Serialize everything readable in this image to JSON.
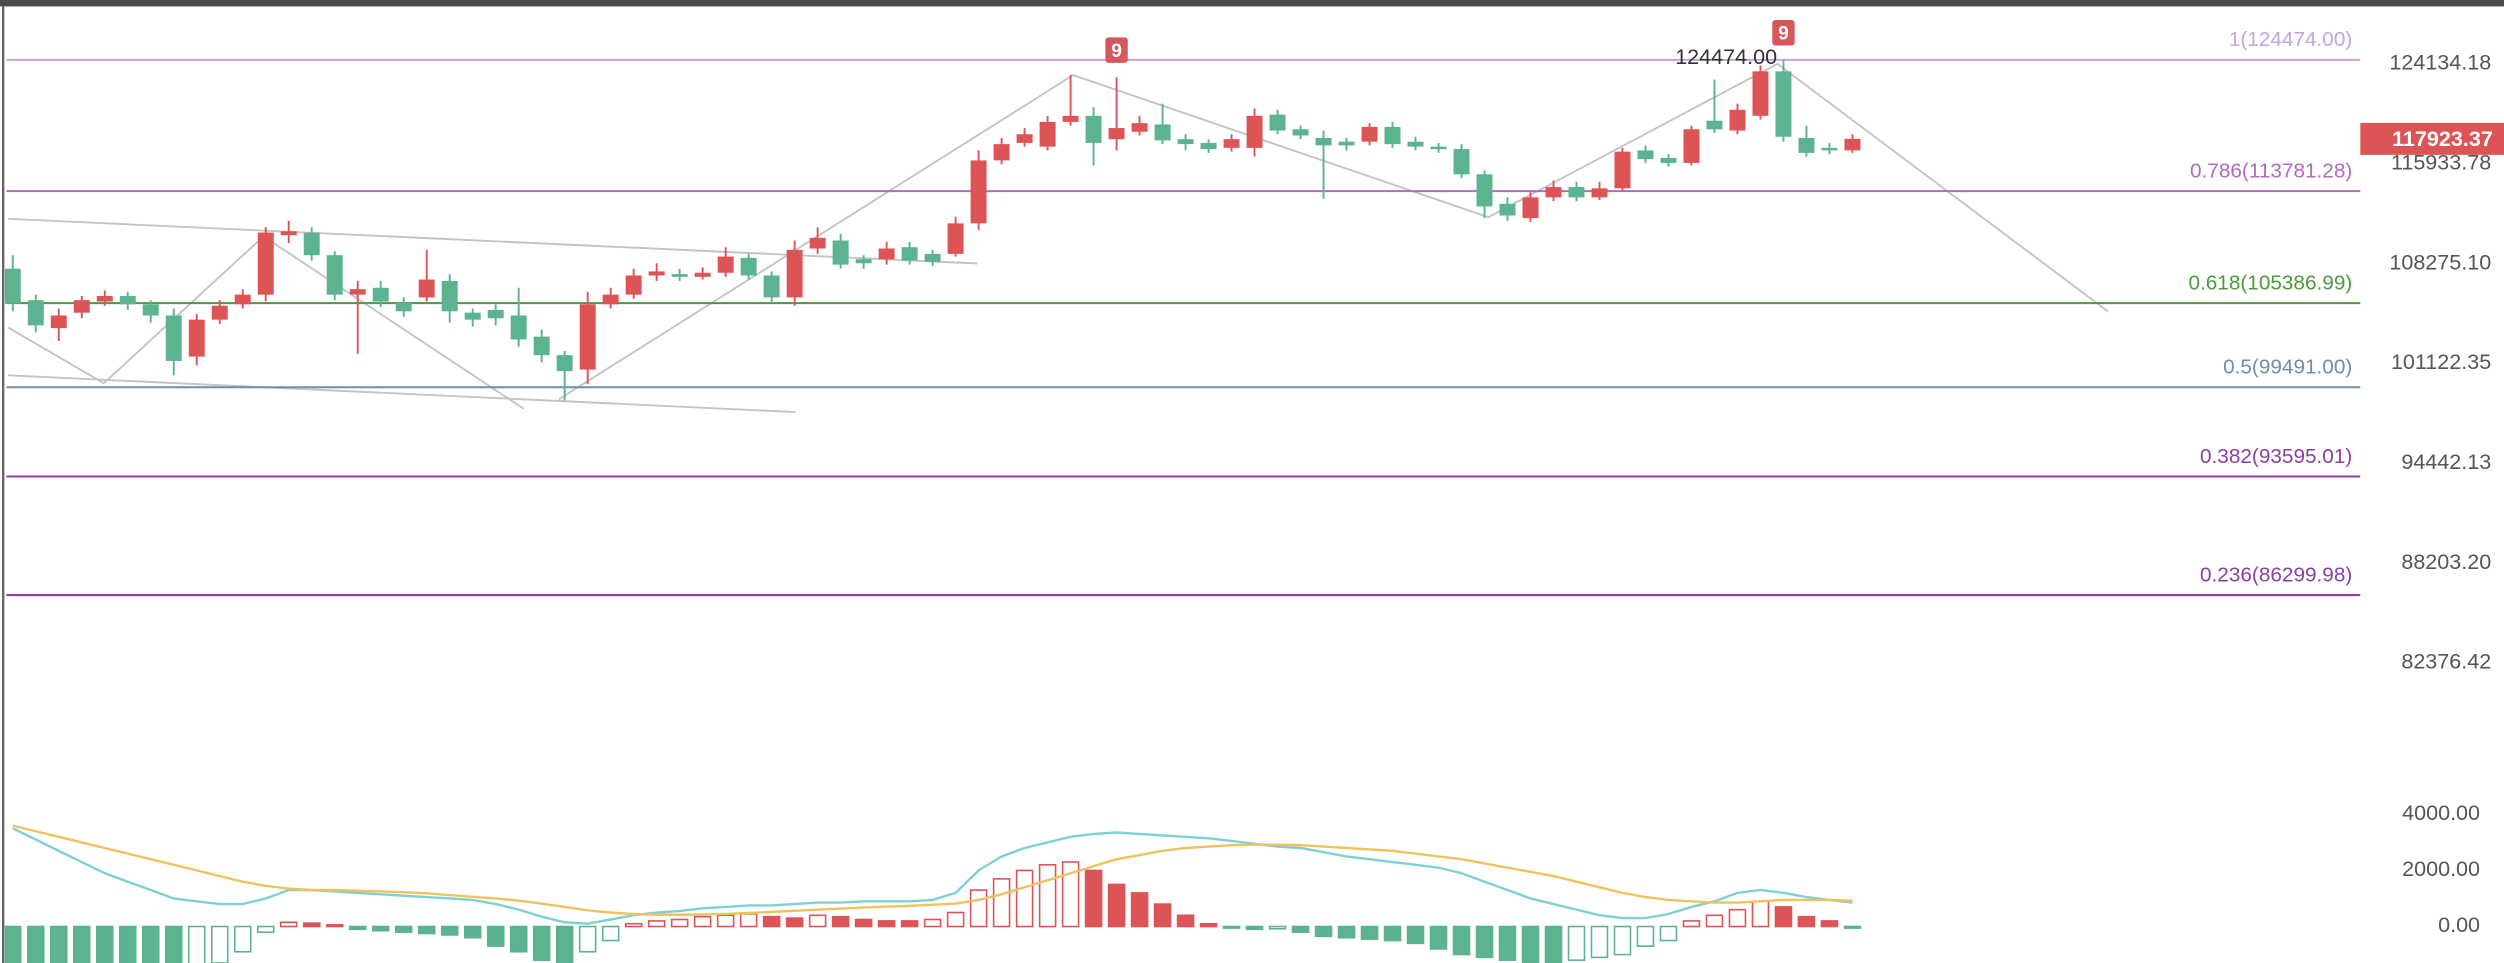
{
  "chart_data": [
    {
      "type": "candlestick",
      "log": true,
      "up_color": "#dd5457",
      "down_color": "#5bb38f",
      "ylim": [
        75910,
        129680
      ],
      "yticks": [
        124134.18,
        115933.78,
        {
          "value": 108275.1,
          "label": "108275.10"
        },
        101122.35,
        94442.13,
        {
          "value": 88203.2,
          "label": "88203.20"
        },
        82376.42
      ],
      "open": [
        107900,
        105600,
        103600,
        104700,
        105500,
        105900,
        105300,
        104500,
        101600,
        104200,
        105300,
        106000,
        110400,
        110600,
        108900,
        106000,
        106500,
        105400,
        105800,
        107000,
        104700,
        104900,
        104500,
        103000,
        101700,
        100700,
        105300,
        106000,
        107400,
        107500,
        107300,
        107600,
        108700,
        107400,
        105800,
        109400,
        110000,
        108600,
        108600,
        109500,
        109000,
        109000,
        111300,
        116200,
        117600,
        117300,
        119300,
        119800,
        117900,
        118500,
        119100,
        117900,
        117600,
        117200,
        117200,
        119900,
        118700,
        118000,
        117700,
        117700,
        118900,
        117700,
        117300,
        117100,
        115100,
        112800,
        111700,
        113300,
        114100,
        113300,
        114000,
        117000,
        116400,
        116000,
        119400,
        118600,
        119800,
        123500,
        118000,
        117200,
        117000
      ],
      "close": [
        105350,
        103800,
        104500,
        105600,
        105900,
        105300,
        104500,
        101300,
        104200,
        105200,
        106000,
        110600,
        110700,
        108900,
        106000,
        106400,
        105500,
        104800,
        107100,
        104800,
        104200,
        104300,
        102800,
        101700,
        100600,
        105300,
        106000,
        107400,
        107700,
        107300,
        107600,
        108800,
        107400,
        105800,
        109300,
        110200,
        108200,
        108300,
        109400,
        108500,
        108400,
        111300,
        116200,
        117500,
        118300,
        119300,
        119800,
        117600,
        118800,
        119200,
        117800,
        117500,
        117100,
        117900,
        119800,
        118600,
        118200,
        117400,
        117400,
        118900,
        117500,
        117300,
        117100,
        115100,
        112600,
        111900,
        113300,
        114100,
        113300,
        114000,
        116900,
        116300,
        116000,
        118700,
        118700,
        120300,
        123500,
        118100,
        116800,
        117000,
        117923.37
      ],
      "high": [
        108900,
        106000,
        105000,
        105900,
        106300,
        106200,
        105600,
        105000,
        104600,
        105600,
        106400,
        111000,
        111500,
        111000,
        109200,
        107000,
        107000,
        105800,
        109300,
        107500,
        105000,
        105300,
        106500,
        103500,
        102000,
        106200,
        106500,
        107900,
        108300,
        107900,
        108000,
        109500,
        109000,
        107700,
        110000,
        111000,
        110500,
        108900,
        109900,
        109900,
        109300,
        111800,
        117000,
        118000,
        118800,
        119800,
        123200,
        120500,
        123000,
        119800,
        120800,
        118300,
        117900,
        118300,
        120400,
        120300,
        119000,
        118600,
        118000,
        119200,
        119300,
        118100,
        117600,
        117500,
        115400,
        113300,
        113700,
        114600,
        114500,
        114500,
        117200,
        117400,
        116700,
        119000,
        122800,
        120800,
        124000,
        124474,
        119000,
        117600,
        118300
      ],
      "low": [
        104800,
        103300,
        102700,
        104300,
        105200,
        104900,
        104000,
        100300,
        101000,
        103900,
        105000,
        105500,
        109800,
        108500,
        105600,
        101800,
        105100,
        104400,
        105500,
        104000,
        103700,
        103800,
        102300,
        101200,
        98600,
        99700,
        105000,
        105700,
        107000,
        107000,
        107100,
        107300,
        107100,
        105400,
        105200,
        109000,
        107900,
        107900,
        108200,
        108200,
        108100,
        108800,
        110800,
        115900,
        117300,
        117000,
        119000,
        115800,
        117000,
        118200,
        117500,
        117000,
        116800,
        116900,
        116500,
        118300,
        117900,
        113200,
        117000,
        117400,
        117200,
        117000,
        116800,
        114800,
        111700,
        111500,
        111400,
        113000,
        113000,
        113100,
        113800,
        116000,
        115700,
        115800,
        118400,
        118300,
        119500,
        117700,
        116500,
        116700,
        116800
      ],
      "last_price": 117923.37,
      "last_color": "#dd5457",
      "peak_label": "124474.00",
      "markers": [
        {
          "label": "9",
          "index": 48
        },
        {
          "label": "9",
          "index": 77
        }
      ],
      "fib_levels": [
        {
          "label": "1(124474.00)",
          "value": 124474,
          "color": "#c8a2d8"
        },
        {
          "label": "0.786(113781.28)",
          "value": 113781.28,
          "color": "#b56ac2"
        },
        {
          "label": "0.618(105386.99)",
          "value": 105386.99,
          "color": "#4c9a3c"
        },
        {
          "label": "0.5(99491.00)",
          "value": 99491,
          "color": "#6b8fae"
        },
        {
          "label": "0.382(93595.01)",
          "value": 93595.01,
          "color": "#8b3fa3"
        },
        {
          "label": "0.236(86299.98)",
          "value": 86299.98,
          "color": "#8b3fa3"
        }
      ]
    },
    {
      "type": "macd",
      "ylim": [
        -1300,
        4850
      ],
      "yticks": [
        {
          "value": 4000,
          "label": "4000.00"
        },
        {
          "value": 2000,
          "label": "2000.00"
        },
        {
          "value": 0,
          "label": "0.00"
        }
      ],
      "dif_color": "#7fd0d6",
      "dea_color": "#efc25e",
      "up_color": "#dd5457",
      "down_color": "#5bb38f",
      "histogram": [
        -1500,
        -1500,
        -1500,
        -1500,
        -1500,
        -1500,
        -1500,
        -1500,
        -1450,
        -1300,
        -900,
        -200,
        150,
        120,
        60,
        -100,
        -150,
        -200,
        -250,
        -300,
        -400,
        -700,
        -900,
        -1200,
        -1400,
        -900,
        -500,
        100,
        200,
        250,
        350,
        400,
        450,
        350,
        300,
        400,
        350,
        250,
        200,
        200,
        250,
        500,
        1300,
        1700,
        2000,
        2200,
        2300,
        2000,
        1500,
        1200,
        800,
        400,
        100,
        -50,
        -100,
        -80,
        -200,
        -350,
        -400,
        -450,
        -500,
        -600,
        -800,
        -1000,
        -1100,
        -1200,
        -1300,
        -1300,
        -1200,
        -1100,
        -1000,
        -700,
        -500,
        200,
        400,
        600,
        900,
        700,
        350,
        200,
        -50
      ],
      "dif": [
        3500,
        3100,
        2700,
        2300,
        1900,
        1600,
        1300,
        1000,
        900,
        800,
        800,
        1000,
        1300,
        1300,
        1250,
        1200,
        1150,
        1100,
        1050,
        1000,
        950,
        800,
        600,
        350,
        150,
        100,
        250,
        400,
        500,
        550,
        650,
        700,
        750,
        750,
        800,
        850,
        850,
        900,
        900,
        900,
        950,
        1200,
        2000,
        2500,
        2800,
        3000,
        3200,
        3300,
        3350,
        3300,
        3250,
        3200,
        3150,
        3050,
        2950,
        2850,
        2800,
        2650,
        2500,
        2400,
        2300,
        2200,
        2100,
        1900,
        1600,
        1300,
        1000,
        800,
        600,
        400,
        300,
        300,
        450,
        700,
        900,
        1200,
        1300,
        1200,
        1050,
        950,
        850
      ],
      "dea": [
        3600,
        3400,
        3200,
        3000,
        2800,
        2600,
        2400,
        2200,
        2000,
        1800,
        1600,
        1450,
        1350,
        1300,
        1300,
        1280,
        1250,
        1220,
        1180,
        1120,
        1060,
        1000,
        920,
        820,
        700,
        580,
        500,
        450,
        420,
        420,
        430,
        450,
        480,
        520,
        560,
        600,
        640,
        680,
        710,
        740,
        770,
        820,
        950,
        1150,
        1400,
        1650,
        1900,
        2150,
        2400,
        2550,
        2700,
        2800,
        2850,
        2900,
        2920,
        2920,
        2900,
        2850,
        2800,
        2750,
        2700,
        2600,
        2500,
        2400,
        2250,
        2100,
        1950,
        1800,
        1600,
        1400,
        1200,
        1050,
        950,
        900,
        850,
        850,
        900,
        950,
        950,
        950,
        920
      ]
    }
  ]
}
